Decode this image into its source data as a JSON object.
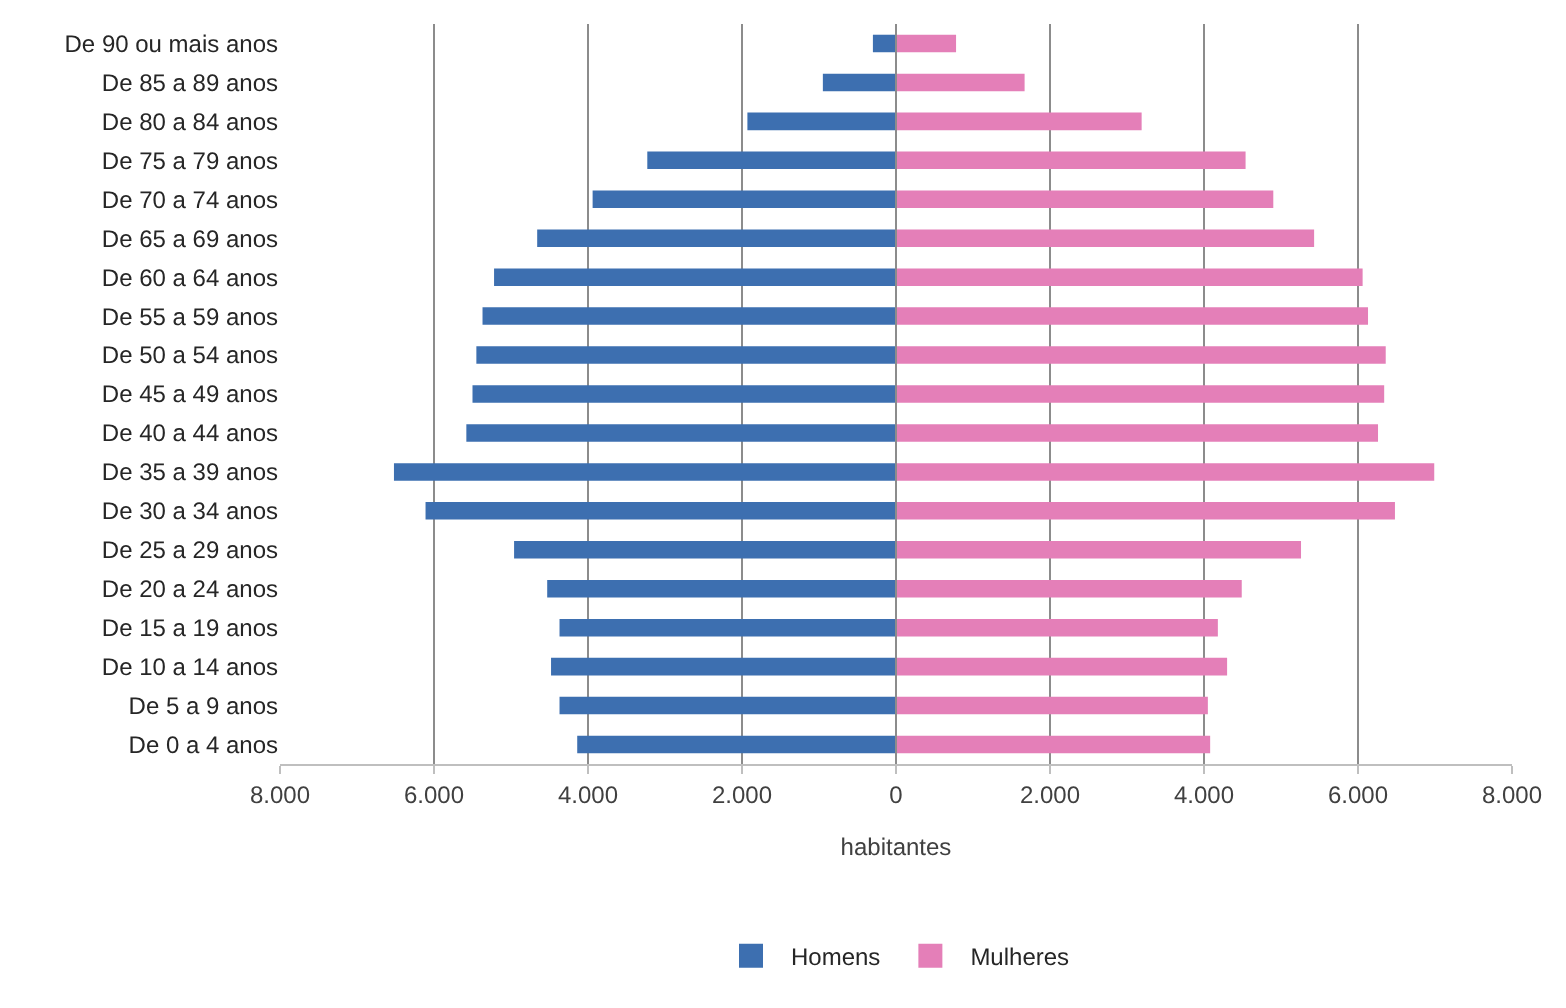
{
  "chart_data": {
    "type": "bar",
    "orientation": "horizontal",
    "xlabel": "habitantes",
    "categories": [
      "De 90 ou mais anos",
      "De 85 a 89 anos",
      "De 80 a 84 anos",
      "De 75 a 79 anos",
      "De 70 a 74 anos",
      "De 65 a 69 anos",
      "De 60 a 64 anos",
      "De 55 a 59 anos",
      "De 50 a 54 anos",
      "De 45 a 49 anos",
      "De 40 a 44 anos",
      "De 35 a 39 anos",
      "De 30 a 34 anos",
      "De 25 a 29 anos",
      "De 20 a 24 anos",
      "De 15 a 19 anos",
      "De 10 a 14 anos",
      "De 5 a 9 anos",
      "De 0 a 4 anos"
    ],
    "series": [
      {
        "name": "Homens",
        "color": "#3d6fb0",
        "values": [
          -300,
          -950,
          -1930,
          -3230,
          -3940,
          -4660,
          -5220,
          -5370,
          -5450,
          -5500,
          -5580,
          -6520,
          -6110,
          -4960,
          -4530,
          -4370,
          -4480,
          -4370,
          -4140
        ]
      },
      {
        "name": "Mulheres",
        "color": "#e47fb8",
        "values": [
          780,
          1670,
          3190,
          4540,
          4900,
          5430,
          6060,
          6130,
          6360,
          6340,
          6260,
          6990,
          6480,
          5260,
          4490,
          4180,
          4300,
          4050,
          4080
        ]
      }
    ],
    "xlim": [
      -8000,
      8000
    ],
    "xticks": [
      {
        "value": -8000,
        "label": "8.000"
      },
      {
        "value": -6000,
        "label": "6.000"
      },
      {
        "value": -4000,
        "label": "4.000"
      },
      {
        "value": -2000,
        "label": "2.000"
      },
      0,
      {
        "value": 2000,
        "label": "2.000"
      },
      {
        "value": 4000,
        "label": "4.000"
      },
      {
        "value": 6000,
        "label": "6.000"
      },
      {
        "value": 8000,
        "label": "8.000"
      }
    ],
    "grid": "x",
    "legend": "bottom",
    "stacked": true
  }
}
